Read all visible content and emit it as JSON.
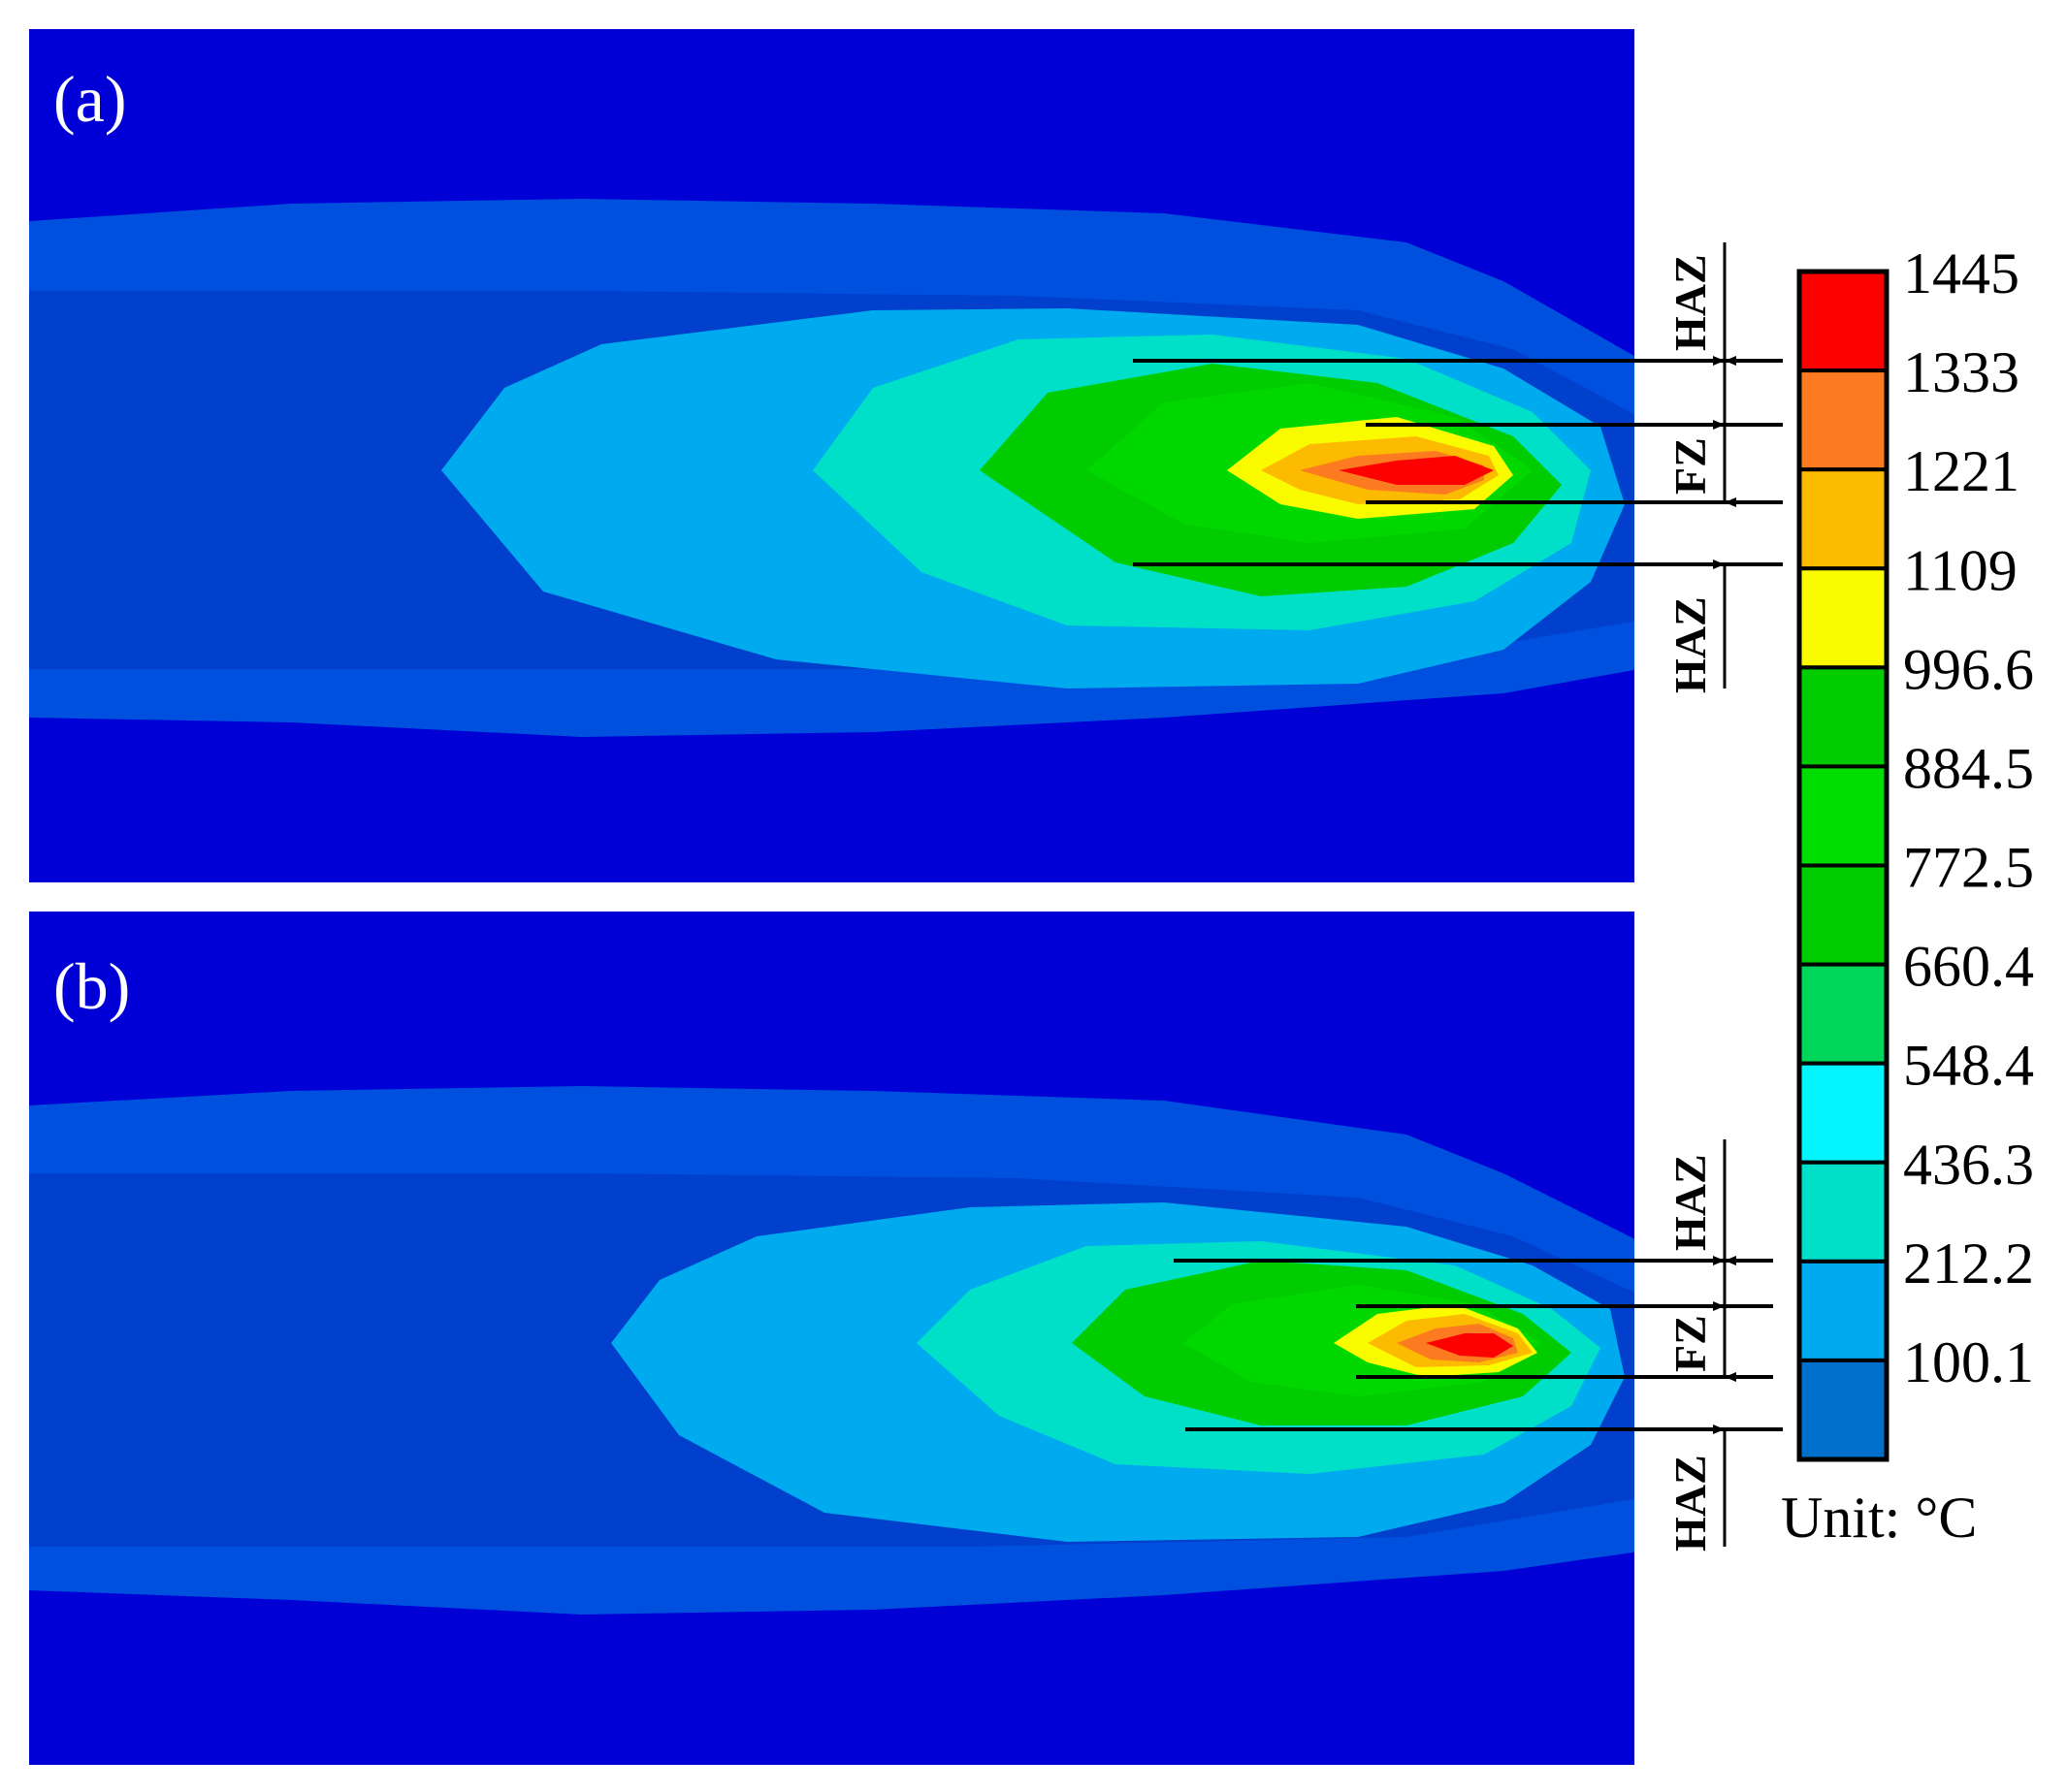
{
  "panels": [
    {
      "label": "(a)",
      "zones": [
        "HAZ",
        "FZ",
        "HAZ"
      ]
    },
    {
      "label": "(b)",
      "zones": [
        "HAZ",
        "FZ",
        "HAZ"
      ]
    }
  ],
  "legend": {
    "levels": [
      "1445",
      "1333",
      "1221",
      "1109",
      "996.6",
      "884.5",
      "772.5",
      "660.4",
      "548.4",
      "436.3",
      "212.2",
      "100.1"
    ],
    "colors": [
      "#fd0000",
      "#fc7a20",
      "#fcbb00",
      "#fbfb00",
      "#00cc00",
      "#00dd00",
      "#00cc00",
      "#00d65a",
      "#00f5ff",
      "#00e0c8",
      "#00aaee",
      "#0070cc"
    ],
    "unit": "Unit: °C"
  },
  "colors": {
    "background": "#0000d6",
    "outer_band": "#0060e0",
    "plume": "#00aaee",
    "cyan_band": "#00e0c8",
    "green": "#00cc00",
    "yellow": "#fbfb00",
    "orange": "#fc7a20",
    "red": "#fd0000"
  }
}
